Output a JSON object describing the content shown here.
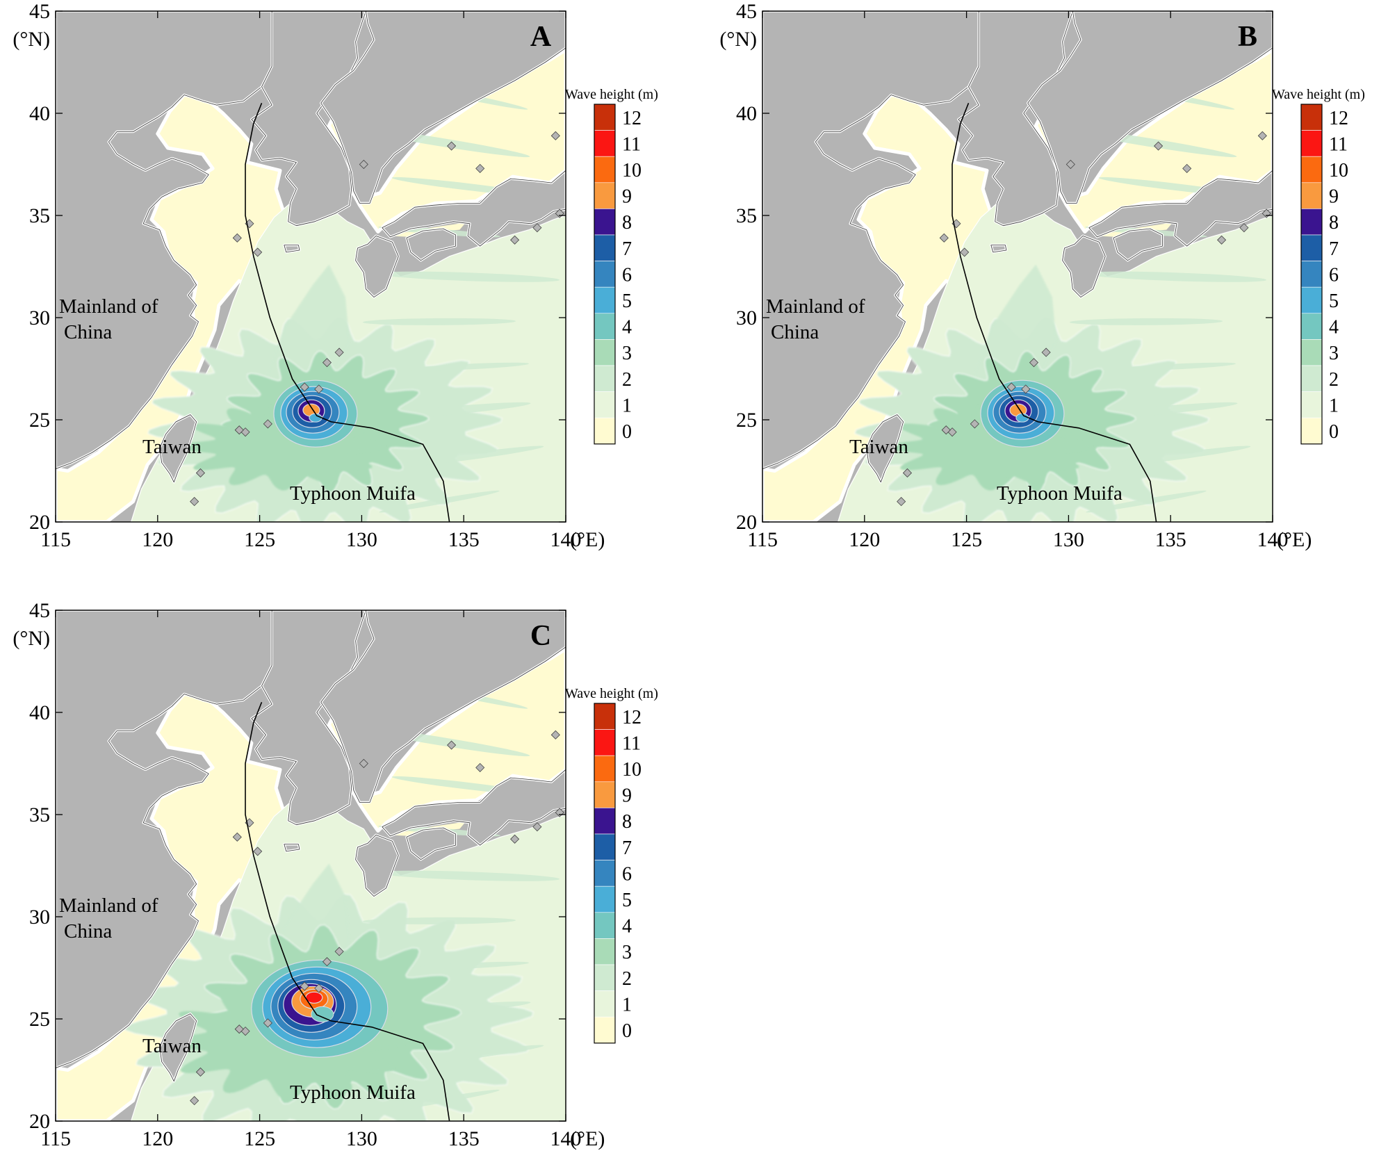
{
  "axes": {
    "lon_ticks": [
      "115",
      "120",
      "125",
      "130",
      "135",
      "140"
    ],
    "lat_ticks": [
      "20",
      "25",
      "30",
      "35",
      "40",
      "45"
    ],
    "lon_unit": "(°E)",
    "lat_unit": "(°N)",
    "lon_range": [
      115,
      140
    ],
    "lat_range": [
      20,
      45
    ]
  },
  "colorbar": {
    "title": "Wave height (m)",
    "labels": [
      "0",
      "1",
      "2",
      "3",
      "4",
      "5",
      "6",
      "7",
      "8",
      "9",
      "10",
      "11",
      "12"
    ],
    "colors": [
      "#fffbd1",
      "#e8f5dc",
      "#cfead1",
      "#a9dbb7",
      "#74c7c0",
      "#4aaed7",
      "#3585bf",
      "#1d5ea6",
      "#3a148f",
      "#f99a3f",
      "#fb6a10",
      "#fb1613",
      "#c8300a"
    ]
  },
  "colors": {
    "land": "#b4b4b4",
    "shallow_sea": "#fffbd1",
    "track": "#000000"
  },
  "places": {
    "mainland_line1": "Mainland of",
    "mainland_line2": "China",
    "taiwan": "Taiwan",
    "typhoon": "Typhoon Muifa"
  },
  "panels": [
    {
      "label": "A",
      "colorbar": true,
      "intensity": "moderate",
      "storm_center": [
        127.6,
        25.3
      ]
    },
    {
      "label": "B",
      "colorbar": true,
      "intensity": "moderate",
      "storm_center": [
        127.6,
        25.3
      ]
    },
    {
      "label": "C",
      "colorbar": true,
      "intensity": "strong",
      "storm_center": [
        127.8,
        25.5
      ]
    }
  ],
  "typhoon_track": [
    [
      134.3,
      20
    ],
    [
      134.0,
      22
    ],
    [
      133.0,
      23.8
    ],
    [
      130.5,
      24.6
    ],
    [
      128.5,
      24.9
    ],
    [
      127.8,
      25.2
    ],
    [
      126.6,
      27.0
    ],
    [
      125.5,
      30.0
    ],
    [
      124.7,
      33.0
    ],
    [
      124.3,
      35.0
    ],
    [
      124.3,
      37.5
    ],
    [
      124.7,
      39.5
    ],
    [
      125.1,
      40.5
    ]
  ]
}
